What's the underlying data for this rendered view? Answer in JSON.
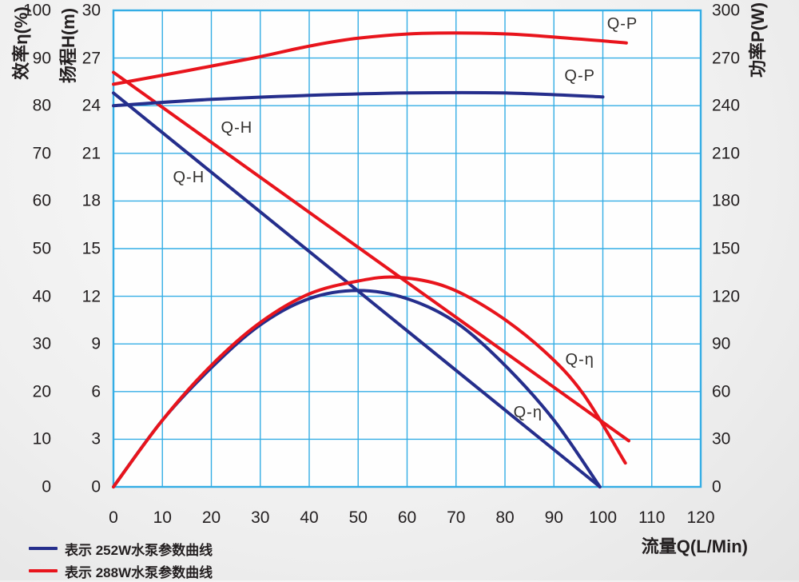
{
  "chart_data": {
    "type": "line",
    "description": "Pump performance curves: head, power and efficiency versus flow for 252W and 288W pumps",
    "grid": true,
    "x_axis": {
      "label": "流量Q(L/Min)",
      "min": 0,
      "max": 120,
      "ticks": [
        0,
        10,
        20,
        30,
        40,
        50,
        60,
        70,
        80,
        90,
        100,
        110,
        120
      ]
    },
    "y_axes": [
      {
        "id": "eta",
        "label": "效率η(%)",
        "min": 0,
        "max": 100,
        "ticks": [
          100,
          90,
          80,
          70,
          60,
          50,
          40,
          30,
          20,
          10,
          0
        ]
      },
      {
        "id": "head",
        "label": "扬程H(m)",
        "min": 0,
        "max": 30,
        "ticks": [
          30,
          27,
          24,
          21,
          18,
          15,
          12,
          9,
          6,
          3,
          0
        ]
      },
      {
        "id": "power",
        "label": "功率P(W)",
        "min": 0,
        "max": 300,
        "ticks": [
          300,
          270,
          240,
          210,
          180,
          150,
          120,
          90,
          60,
          30,
          0
        ]
      }
    ],
    "series": [
      {
        "name": "Q-H 252W",
        "pump": "252W",
        "axis": "head",
        "color": "#252e8c",
        "points": [
          [
            0,
            24.8
          ],
          [
            99.4,
            0
          ]
        ]
      },
      {
        "name": "Q-H 288W",
        "pump": "288W",
        "axis": "head",
        "color": "#e8141c",
        "points": [
          [
            0,
            26.1
          ],
          [
            105.3,
            2.9
          ]
        ]
      },
      {
        "name": "Q-P 252W",
        "pump": "252W",
        "axis": "power",
        "color": "#252e8c",
        "points": [
          [
            0,
            240
          ],
          [
            20,
            244
          ],
          [
            40,
            246.5
          ],
          [
            60,
            248
          ],
          [
            80,
            248
          ],
          [
            100,
            245.5
          ]
        ]
      },
      {
        "name": "Q-P 288W",
        "pump": "288W",
        "axis": "power",
        "color": "#e8141c",
        "points": [
          [
            0,
            253.5
          ],
          [
            15,
            262
          ],
          [
            28.6,
            270
          ],
          [
            40,
            277.5
          ],
          [
            50,
            282.5
          ],
          [
            63,
            285.5
          ],
          [
            80,
            285.2
          ],
          [
            95,
            282
          ],
          [
            104.8,
            279.5
          ]
        ]
      },
      {
        "name": "Q-η 252W",
        "pump": "252W",
        "axis": "eta",
        "color": "#252e8c",
        "points": [
          [
            0,
            0
          ],
          [
            10,
            14
          ],
          [
            20,
            25
          ],
          [
            30,
            34
          ],
          [
            40,
            39.5
          ],
          [
            50,
            41.2
          ],
          [
            60,
            39.5
          ],
          [
            70,
            34.5
          ],
          [
            80,
            25.5
          ],
          [
            90,
            14
          ],
          [
            99.4,
            0
          ]
        ]
      },
      {
        "name": "Q-η 288W",
        "pump": "288W",
        "axis": "eta",
        "color": "#e8141c",
        "points": [
          [
            0,
            0
          ],
          [
            10,
            14
          ],
          [
            20,
            25.5
          ],
          [
            30,
            34.5
          ],
          [
            40,
            40.5
          ],
          [
            50,
            43.2
          ],
          [
            58,
            44
          ],
          [
            68,
            42
          ],
          [
            78,
            36.5
          ],
          [
            88,
            28.5
          ],
          [
            96,
            19.5
          ],
          [
            104.6,
            5
          ]
        ]
      }
    ],
    "labels": [
      {
        "text": "Q-P",
        "axis": "power",
        "q": 104,
        "v": 291.5
      },
      {
        "text": "Q-P",
        "axis": "power",
        "q": 95.3,
        "v": 258.8
      },
      {
        "text": "Q-H",
        "axis": "head",
        "q": 25.2,
        "v": 22.6
      },
      {
        "text": "Q-H",
        "axis": "head",
        "q": 15.4,
        "v": 19.5
      },
      {
        "text": "Q-η",
        "axis": "eta",
        "q": 95.3,
        "v": 26.6
      },
      {
        "text": "Q-η",
        "axis": "eta",
        "q": 84.7,
        "v": 15.6
      }
    ]
  },
  "legend": {
    "items": [
      {
        "color": "#252e8c",
        "label": "表示 252W水泵参数曲线"
      },
      {
        "color": "#e8141c",
        "label": "表示 288W水泵参数曲线"
      }
    ]
  },
  "colors": {
    "grid": "#34ade5",
    "plot_background": "#fefefe",
    "text": "#231f20",
    "blue_curve": "#252e8c",
    "red_curve": "#e8141c"
  }
}
